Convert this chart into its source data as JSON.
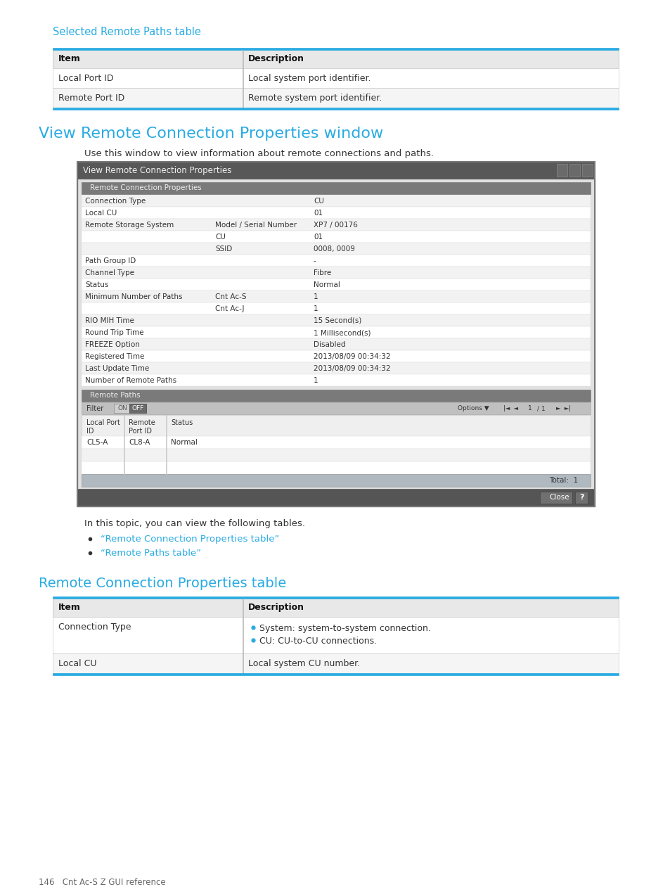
{
  "bg_color": "#ffffff",
  "cyan_color": "#29abe2",
  "text_color": "#333333",
  "header_bg": "#e8e8e8",
  "table_border_color": "#29abe2",
  "mid_gray": "#cccccc",
  "light_gray": "#f5f5f5",
  "white": "#ffffff",
  "page_label": "146   Cnt Ac-S Z GUI reference",
  "section1_title": "Selected Remote Paths table",
  "table1_headers": [
    "Item",
    "Description"
  ],
  "table1_rows": [
    [
      "Local Port ID",
      "Local system port identifier."
    ],
    [
      "Remote Port ID",
      "Remote system port identifier."
    ]
  ],
  "section2_title": "View Remote Connection Properties window",
  "section2_desc": "Use this window to view information about remote connections and paths.",
  "window_title": "View Remote Connection Properties",
  "window_section1": "Remote Connection Properties",
  "window_rows": [
    [
      "Connection Type",
      "",
      "CU"
    ],
    [
      "Local CU",
      "",
      "01"
    ],
    [
      "Remote Storage System",
      "Model / Serial Number",
      "XP7 / 00176"
    ],
    [
      "",
      "CU",
      "01"
    ],
    [
      "",
      "SSID",
      "0008, 0009"
    ],
    [
      "Path Group ID",
      "",
      "-"
    ],
    [
      "Channel Type",
      "",
      "Fibre"
    ],
    [
      "Status",
      "",
      "Normal"
    ],
    [
      "Minimum Number of Paths",
      "Cnt Ac-S",
      "1"
    ],
    [
      "",
      "Cnt Ac-J",
      "1"
    ],
    [
      "RIO MIH Time",
      "",
      "15 Second(s)"
    ],
    [
      "Round Trip Time",
      "",
      "1 Millisecond(s)"
    ],
    [
      "FREEZE Option",
      "",
      "Disabled"
    ],
    [
      "Registered Time",
      "",
      "2013/08/09 00:34:32"
    ],
    [
      "Last Update Time",
      "",
      "2013/08/09 00:34:32"
    ],
    [
      "Number of Remote Paths",
      "",
      "1"
    ]
  ],
  "window_section2": "Remote Paths",
  "remote_paths_cols": [
    "Local Port\nID",
    "Remote\nPort ID",
    "Status"
  ],
  "remote_paths_data": [
    [
      "CL5-A",
      "CL8-A",
      "Normal"
    ]
  ],
  "section3_text": "In this topic, you can view the following tables.",
  "section3_bullets": [
    "“Remote Connection Properties table”",
    "“Remote Paths table”"
  ],
  "section4_title": "Remote Connection Properties table",
  "table4_headers": [
    "Item",
    "Description"
  ],
  "table4_rows": [
    [
      "Connection Type",
      [
        "System: system-to-system connection.",
        "CU: CU-to-CU connections."
      ]
    ],
    [
      "Local CU",
      [
        "Local system CU number."
      ]
    ]
  ]
}
